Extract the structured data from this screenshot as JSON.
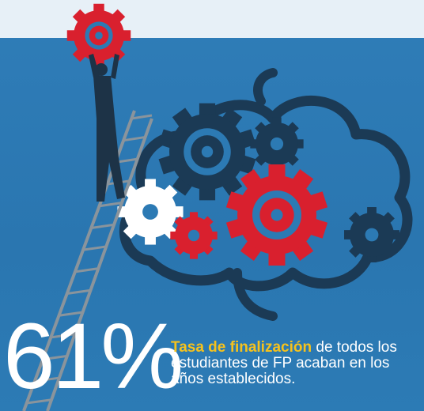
{
  "stat": {
    "figure": "61%",
    "highlight": "Tasa de finalización",
    "text": " de todos los estudiantes de FP acaban en los años establecidos."
  }
}
